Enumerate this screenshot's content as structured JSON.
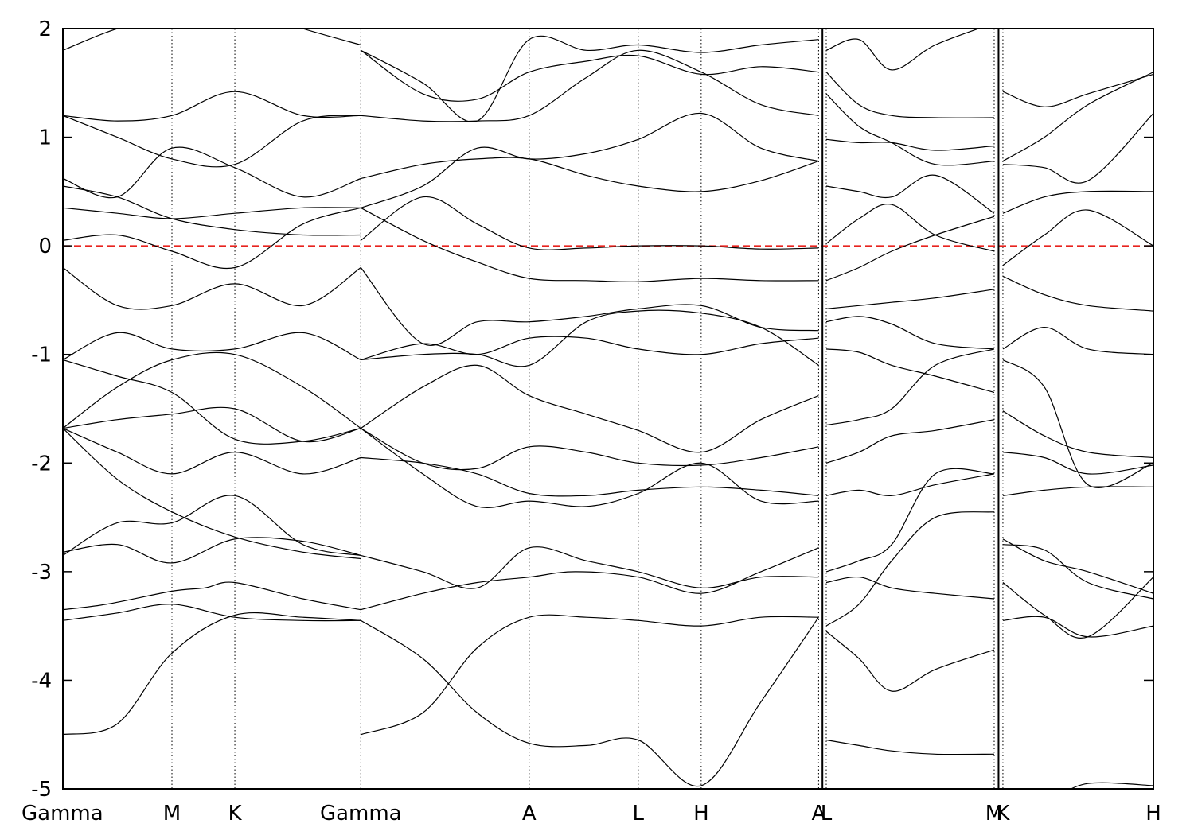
{
  "chart_data": {
    "type": "line",
    "title": "",
    "xlabel": "",
    "ylabel": "",
    "ylim": [
      -5,
      2
    ],
    "yticks": [
      2,
      1,
      0,
      -1,
      -2,
      -3,
      -4,
      -5
    ],
    "ytick_labels": [
      "2",
      "1",
      "0",
      "-1",
      "-2",
      "-3",
      "-4",
      "-5"
    ],
    "xlim": [
      0,
      10
    ],
    "high_symmetry_points": [
      {
        "label": "Gamma",
        "x": 0.0
      },
      {
        "label": "M",
        "x": 1.0
      },
      {
        "label": "K",
        "x": 1.577
      },
      {
        "label": "Gamma",
        "x": 2.732
      },
      {
        "label": "A",
        "x": 4.276
      },
      {
        "label": "L",
        "x": 5.276
      },
      {
        "label": "H",
        "x": 5.853
      },
      {
        "label": "A",
        "x": 6.93
      },
      {
        "label": "L",
        "x": 7.0
      },
      {
        "label": "M",
        "x": 8.54
      },
      {
        "label": "K",
        "x": 8.62
      },
      {
        "label": "H",
        "x": 10.0
      }
    ],
    "panel_breaks": [
      6.965,
      8.58
    ],
    "fermi_level": {
      "y": 0,
      "color": "#e8231e",
      "style": "dashed"
    },
    "line_color": "#000000",
    "series": [
      {
        "x": [
          0,
          0.5,
          1.0,
          1.577,
          2.2,
          2.732
        ],
        "y": [
          -4.5,
          -4.4,
          -3.75,
          -3.4,
          -3.42,
          -3.45
        ]
      },
      {
        "x": [
          0,
          0.5,
          1.0,
          1.577,
          2.2,
          2.732
        ],
        "y": [
          -3.45,
          -3.38,
          -3.3,
          -3.42,
          -3.45,
          -3.45
        ]
      },
      {
        "x": [
          0,
          0.4,
          1.0,
          1.3,
          1.577,
          2.2,
          2.732
        ],
        "y": [
          -3.35,
          -3.3,
          -3.18,
          -3.15,
          -3.1,
          -3.25,
          -3.35
        ]
      },
      {
        "x": [
          0,
          0.5,
          1.0,
          1.577,
          2.2,
          2.732
        ],
        "y": [
          -2.85,
          -2.55,
          -2.55,
          -2.3,
          -2.75,
          -2.85
        ]
      },
      {
        "x": [
          0,
          0.5,
          1.0,
          1.577,
          2.2,
          2.732
        ],
        "y": [
          -2.82,
          -2.75,
          -2.92,
          -2.7,
          -2.72,
          -2.85
        ]
      },
      {
        "x": [
          0,
          0.5,
          1.0,
          1.577,
          2.2,
          2.732
        ],
        "y": [
          -1.68,
          -2.15,
          -2.45,
          -2.68,
          -2.82,
          -2.88
        ]
      },
      {
        "x": [
          0,
          0.5,
          1.0,
          1.577,
          2.2,
          2.732
        ],
        "y": [
          -1.68,
          -1.6,
          -1.55,
          -1.5,
          -1.8,
          -1.68
        ]
      },
      {
        "x": [
          0,
          0.5,
          1.0,
          1.577,
          2.2,
          2.732
        ],
        "y": [
          -1.68,
          -1.9,
          -2.1,
          -1.9,
          -2.1,
          -1.95
        ]
      },
      {
        "x": [
          0,
          0.5,
          1.0,
          1.577,
          2.2,
          2.732
        ],
        "y": [
          -1.68,
          -1.3,
          -1.05,
          -1.0,
          -1.3,
          -1.68
        ]
      },
      {
        "x": [
          0,
          0.5,
          1.0,
          1.577,
          2.2,
          2.732
        ],
        "y": [
          -1.05,
          -1.2,
          -1.35,
          -1.78,
          -1.8,
          -1.68
        ]
      },
      {
        "x": [
          0,
          0.5,
          1.0,
          1.577,
          2.2,
          2.732
        ],
        "y": [
          -1.05,
          -0.8,
          -0.95,
          -0.95,
          -0.8,
          -1.05
        ]
      },
      {
        "x": [
          0,
          0.5,
          1.0,
          1.577,
          2.2,
          2.732
        ],
        "y": [
          -0.2,
          -0.55,
          -0.55,
          -0.35,
          -0.55,
          -0.2
        ]
      },
      {
        "x": [
          0,
          0.5,
          1.0,
          1.577,
          2.2,
          2.732
        ],
        "y": [
          0.05,
          0.1,
          -0.05,
          -0.2,
          0.2,
          0.35
        ]
      },
      {
        "x": [
          0,
          0.5,
          1.0,
          1.577,
          2.2,
          2.732
        ],
        "y": [
          0.35,
          0.3,
          0.25,
          0.3,
          0.35,
          0.35
        ]
      },
      {
        "x": [
          0,
          0.5,
          1.0,
          1.577,
          2.2,
          2.732
        ],
        "y": [
          0.55,
          0.45,
          0.25,
          0.15,
          0.1,
          0.1
        ]
      },
      {
        "x": [
          0,
          0.5,
          1.0,
          1.577,
          2.2,
          2.732
        ],
        "y": [
          1.2,
          1.0,
          0.8,
          0.75,
          1.15,
          1.2
        ]
      },
      {
        "x": [
          0,
          0.5,
          1.0,
          1.577,
          2.2,
          2.732
        ],
        "y": [
          1.2,
          1.15,
          1.2,
          1.42,
          1.2,
          1.2
        ]
      },
      {
        "x": [
          0,
          0.5,
          1.0,
          1.577,
          2.2,
          2.732
        ],
        "y": [
          0.62,
          0.45,
          0.9,
          0.72,
          0.45,
          0.62
        ]
      },
      {
        "x": [
          0,
          0.5,
          1.0,
          1.577,
          2.2,
          2.732
        ],
        "y": [
          1.8,
          2.0,
          2.1,
          2.2,
          2.0,
          1.85
        ]
      },
      {
        "x": [
          2.732,
          3.3,
          3.8,
          4.276,
          4.8,
          5.276,
          5.853,
          6.4,
          6.93
        ],
        "y": [
          -3.45,
          -3.8,
          -4.3,
          -4.58,
          -4.6,
          -4.55,
          -4.97,
          -4.2,
          -3.42
        ]
      },
      {
        "x": [
          2.732,
          3.3,
          3.8,
          4.276,
          4.8,
          5.276,
          5.853,
          6.4,
          6.93
        ],
        "y": [
          -4.5,
          -4.3,
          -3.7,
          -3.42,
          -3.42,
          -3.45,
          -3.5,
          -3.42,
          -3.42
        ]
      },
      {
        "x": [
          2.732,
          3.3,
          3.8,
          4.276,
          4.7,
          5.276,
          5.853,
          6.4,
          6.93
        ],
        "y": [
          -3.35,
          -3.2,
          -3.1,
          -3.05,
          -3.0,
          -3.05,
          -3.2,
          -3.0,
          -2.78
        ]
      },
      {
        "x": [
          2.732,
          3.3,
          3.8,
          4.276,
          4.8,
          5.276,
          5.853,
          6.4,
          6.93
        ],
        "y": [
          -2.85,
          -3.0,
          -3.15,
          -2.78,
          -2.9,
          -3.0,
          -3.15,
          -3.05,
          -3.05
        ]
      },
      {
        "x": [
          2.732,
          3.3,
          3.8,
          4.276,
          4.8,
          5.276,
          5.853,
          6.4,
          6.93
        ],
        "y": [
          -1.95,
          -2.0,
          -2.1,
          -2.28,
          -2.3,
          -2.25,
          -2.22,
          -2.25,
          -2.3
        ]
      },
      {
        "x": [
          2.732,
          3.3,
          3.8,
          4.276,
          4.8,
          5.276,
          5.853,
          6.4,
          6.93
        ],
        "y": [
          -1.68,
          -2.1,
          -2.4,
          -2.35,
          -2.4,
          -2.28,
          -2.0,
          -2.35,
          -2.35
        ]
      },
      {
        "x": [
          2.732,
          3.3,
          3.8,
          4.276,
          4.8,
          5.276,
          5.853,
          6.4,
          6.93
        ],
        "y": [
          -1.68,
          -1.3,
          -1.1,
          -1.38,
          -1.55,
          -1.7,
          -1.9,
          -1.6,
          -1.38
        ]
      },
      {
        "x": [
          2.732,
          3.3,
          3.8,
          4.276,
          4.8,
          5.276,
          5.853,
          6.4,
          6.93
        ],
        "y": [
          -1.68,
          -2.0,
          -2.05,
          -1.85,
          -1.9,
          -2.0,
          -2.02,
          -1.95,
          -1.85
        ]
      },
      {
        "x": [
          2.732,
          3.3,
          3.8,
          4.276,
          4.8,
          5.276,
          5.853,
          6.4,
          6.93
        ],
        "y": [
          -1.05,
          -0.9,
          -1.0,
          -0.85,
          -0.85,
          -0.95,
          -1.0,
          -0.9,
          -0.85
        ]
      },
      {
        "x": [
          2.732,
          3.3,
          3.8,
          4.276,
          4.8,
          5.276,
          5.853,
          6.4,
          6.93
        ],
        "y": [
          -1.05,
          -1.0,
          -1.0,
          -1.1,
          -0.7,
          -0.6,
          -0.62,
          -0.75,
          -1.1
        ]
      },
      {
        "x": [
          2.732,
          3.3,
          3.8,
          4.276,
          4.8,
          5.276,
          5.853,
          6.4,
          6.93
        ],
        "y": [
          -0.2,
          -0.9,
          -0.7,
          -0.7,
          -0.65,
          -0.58,
          -0.55,
          -0.75,
          -0.78
        ]
      },
      {
        "x": [
          2.732,
          3.3,
          3.8,
          4.276,
          4.8,
          5.276,
          5.853,
          6.4,
          6.93
        ],
        "y": [
          0.35,
          0.05,
          -0.15,
          -0.3,
          -0.32,
          -0.33,
          -0.3,
          -0.32,
          -0.32
        ]
      },
      {
        "x": [
          2.732,
          3.3,
          3.8,
          4.276,
          4.8,
          5.276,
          5.853,
          6.4,
          6.93
        ],
        "y": [
          0.05,
          0.45,
          0.2,
          -0.02,
          -0.02,
          0.0,
          0.0,
          -0.03,
          -0.02
        ]
      },
      {
        "x": [
          2.732,
          3.3,
          3.8,
          4.276,
          4.8,
          5.276,
          5.853,
          6.4,
          6.93
        ],
        "y": [
          0.62,
          0.75,
          0.8,
          0.8,
          0.65,
          0.55,
          0.5,
          0.6,
          0.78
        ]
      },
      {
        "x": [
          2.732,
          3.3,
          3.8,
          4.276,
          4.8,
          5.276,
          5.853,
          6.4,
          6.93
        ],
        "y": [
          0.35,
          0.55,
          0.9,
          0.8,
          0.85,
          0.98,
          1.22,
          0.9,
          0.78
        ]
      },
      {
        "x": [
          2.732,
          3.3,
          3.8,
          4.276,
          4.8,
          5.276,
          5.853,
          6.4,
          6.93
        ],
        "y": [
          1.2,
          1.15,
          1.15,
          1.2,
          1.55,
          1.8,
          1.6,
          1.3,
          1.2
        ]
      },
      {
        "x": [
          2.732,
          3.3,
          3.8,
          4.276,
          4.8,
          5.276,
          5.853,
          6.4,
          6.93
        ],
        "y": [
          1.8,
          1.4,
          1.35,
          1.6,
          1.7,
          1.75,
          1.58,
          1.65,
          1.6
        ]
      },
      {
        "x": [
          2.732,
          3.3,
          3.8,
          4.276,
          4.8,
          5.276,
          5.853,
          6.4,
          6.93
        ],
        "y": [
          1.8,
          1.5,
          1.15,
          1.9,
          1.8,
          1.85,
          1.78,
          1.85,
          1.9
        ]
      },
      {
        "x": [
          7.0,
          7.3,
          7.6,
          8.0,
          8.54
        ],
        "y": [
          -4.55,
          -4.6,
          -4.65,
          -4.68,
          -4.68
        ]
      },
      {
        "x": [
          7.0,
          7.3,
          7.6,
          8.0,
          8.54
        ],
        "y": [
          -3.55,
          -3.8,
          -4.1,
          -3.9,
          -3.72
        ]
      },
      {
        "x": [
          7.0,
          7.3,
          7.6,
          8.0,
          8.54
        ],
        "y": [
          -3.5,
          -3.3,
          -2.9,
          -2.5,
          -2.45
        ]
      },
      {
        "x": [
          7.0,
          7.3,
          7.6,
          8.0,
          8.54
        ],
        "y": [
          -3.1,
          -3.05,
          -3.15,
          -3.2,
          -3.25
        ]
      },
      {
        "x": [
          7.0,
          7.3,
          7.6,
          8.0,
          8.54
        ],
        "y": [
          -3.0,
          -2.9,
          -2.75,
          -2.1,
          -2.1
        ]
      },
      {
        "x": [
          7.0,
          7.3,
          7.6,
          8.0,
          8.54
        ],
        "y": [
          -2.3,
          -2.25,
          -2.3,
          -2.2,
          -2.1
        ]
      },
      {
        "x": [
          7.0,
          7.3,
          7.6,
          8.0,
          8.54
        ],
        "y": [
          -2.0,
          -1.9,
          -1.75,
          -1.7,
          -1.6
        ]
      },
      {
        "x": [
          7.0,
          7.3,
          7.6,
          8.0,
          8.54
        ],
        "y": [
          -1.65,
          -1.6,
          -1.5,
          -1.1,
          -0.95
        ]
      },
      {
        "x": [
          7.0,
          7.3,
          7.6,
          8.0,
          8.54
        ],
        "y": [
          -0.95,
          -0.98,
          -1.1,
          -1.2,
          -1.35
        ]
      },
      {
        "x": [
          7.0,
          7.3,
          7.6,
          8.0,
          8.54
        ],
        "y": [
          -0.7,
          -0.65,
          -0.72,
          -0.9,
          -0.95
        ]
      },
      {
        "x": [
          7.0,
          7.3,
          7.6,
          8.0,
          8.54
        ],
        "y": [
          -0.58,
          -0.55,
          -0.52,
          -0.48,
          -0.4
        ]
      },
      {
        "x": [
          7.0,
          7.3,
          7.6,
          8.0,
          8.54
        ],
        "y": [
          -0.32,
          -0.2,
          -0.05,
          0.1,
          0.27
        ]
      },
      {
        "x": [
          7.0,
          7.3,
          7.6,
          8.0,
          8.54
        ],
        "y": [
          0.02,
          0.25,
          0.38,
          0.1,
          -0.05
        ]
      },
      {
        "x": [
          7.0,
          7.3,
          7.6,
          8.0,
          8.54
        ],
        "y": [
          0.55,
          0.5,
          0.45,
          0.65,
          0.3
        ]
      },
      {
        "x": [
          7.0,
          7.3,
          7.6,
          8.0,
          8.54
        ],
        "y": [
          0.98,
          0.95,
          0.95,
          0.88,
          0.92
        ]
      },
      {
        "x": [
          7.0,
          7.3,
          7.6,
          8.0,
          8.54
        ],
        "y": [
          1.4,
          1.1,
          0.95,
          0.75,
          0.78
        ]
      },
      {
        "x": [
          7.0,
          7.3,
          7.6,
          8.0,
          8.54
        ],
        "y": [
          1.6,
          1.3,
          1.2,
          1.18,
          1.18
        ]
      },
      {
        "x": [
          7.0,
          7.3,
          7.6,
          8.0,
          8.54
        ],
        "y": [
          1.8,
          1.9,
          1.62,
          1.85,
          2.05
        ]
      },
      {
        "x": [
          8.62,
          9.0,
          9.4,
          10.0
        ],
        "y": [
          -3.45,
          -3.42,
          -3.6,
          -3.5
        ]
      },
      {
        "x": [
          8.62,
          9.0,
          9.4,
          10.0
        ],
        "y": [
          -3.1,
          -3.4,
          -3.6,
          -3.05
        ]
      },
      {
        "x": [
          8.62,
          9.0,
          9.4,
          10.0
        ],
        "y": [
          -2.75,
          -2.8,
          -3.1,
          -3.25
        ]
      },
      {
        "x": [
          8.62,
          9.0,
          9.4,
          10.0
        ],
        "y": [
          -2.7,
          -2.9,
          -3.0,
          -3.2
        ]
      },
      {
        "x": [
          8.62,
          9.0,
          9.4,
          10.0
        ],
        "y": [
          -2.3,
          -2.25,
          -2.22,
          -2.22
        ]
      },
      {
        "x": [
          8.62,
          9.0,
          9.4,
          10.0
        ],
        "y": [
          -1.9,
          -1.95,
          -2.1,
          -2.02
        ]
      },
      {
        "x": [
          8.62,
          9.0,
          9.4,
          10.0
        ],
        "y": [
          -1.52,
          -1.75,
          -1.9,
          -1.95
        ]
      },
      {
        "x": [
          8.62,
          9.0,
          9.4,
          10.0
        ],
        "y": [
          -1.05,
          -1.3,
          -2.2,
          -2.0
        ]
      },
      {
        "x": [
          8.62,
          9.0,
          9.4,
          10.0
        ],
        "y": [
          -0.95,
          -0.75,
          -0.95,
          -1.0
        ]
      },
      {
        "x": [
          8.62,
          9.0,
          9.4,
          10.0
        ],
        "y": [
          -0.28,
          -0.45,
          -0.55,
          -0.6
        ]
      },
      {
        "x": [
          8.62,
          9.0,
          9.4,
          10.0
        ],
        "y": [
          -0.18,
          0.1,
          0.33,
          0.0
        ]
      },
      {
        "x": [
          8.62,
          9.0,
          9.4,
          10.0
        ],
        "y": [
          0.3,
          0.45,
          0.5,
          0.5
        ]
      },
      {
        "x": [
          8.62,
          9.0,
          9.4,
          10.0
        ],
        "y": [
          0.75,
          0.72,
          0.6,
          1.22
        ]
      },
      {
        "x": [
          8.62,
          9.0,
          9.4,
          10.0
        ],
        "y": [
          0.78,
          1.0,
          1.3,
          1.6
        ]
      },
      {
        "x": [
          8.62,
          9.0,
          9.4,
          10.0
        ],
        "y": [
          1.42,
          1.28,
          1.4,
          1.58
        ]
      },
      {
        "x": [
          8.62,
          9.0,
          9.4,
          10.0
        ],
        "y": [
          -5.0,
          -5.1,
          -4.95,
          -4.97
        ]
      }
    ]
  }
}
